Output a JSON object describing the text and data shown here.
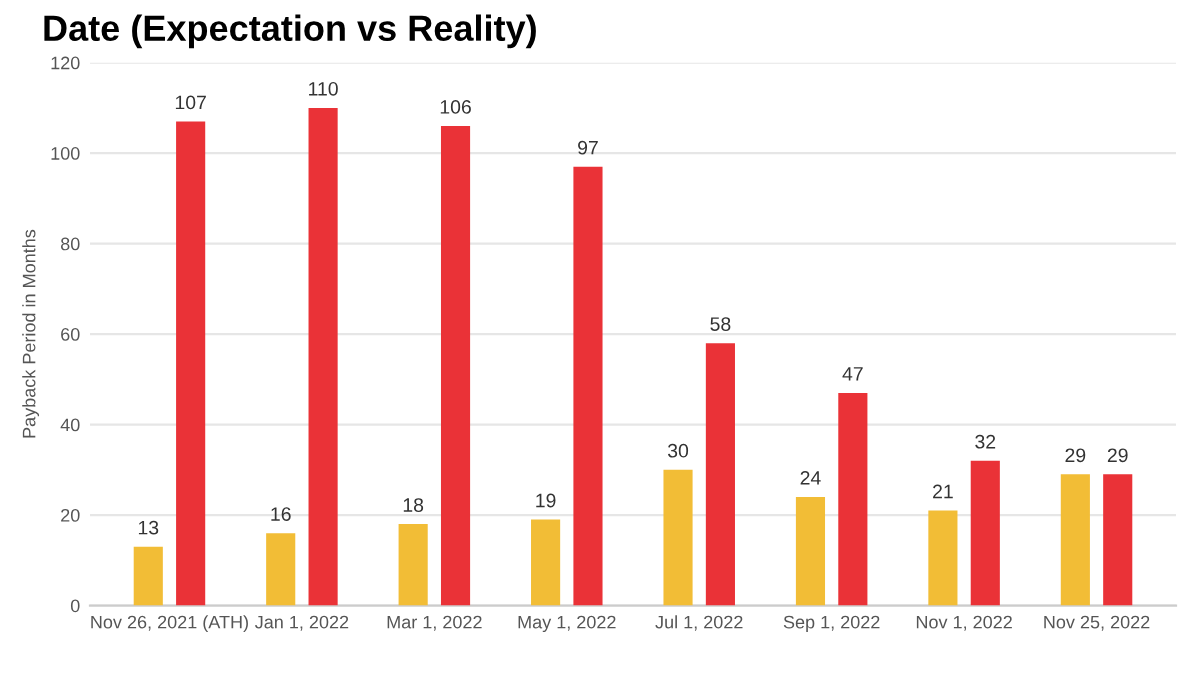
{
  "chart_data": {
    "type": "bar",
    "title": "Date (Expectation vs Reality)",
    "ylabel": "Payback Period in Months",
    "categories": [
      "Nov 26, 2021 (ATH)",
      "Jan 1, 2022",
      "Mar 1, 2022",
      "May 1, 2022",
      "Jul 1, 2022",
      "Sep 1, 2022",
      "Nov 1, 2022",
      "Nov 25, 2022"
    ],
    "series": [
      {
        "color": "#f2bd36",
        "values": [
          13,
          16,
          18,
          19,
          30,
          24,
          21,
          29
        ]
      },
      {
        "color": "#ea3237",
        "values": [
          107,
          110,
          106,
          97,
          58,
          47,
          32,
          29
        ]
      }
    ],
    "ylim": [
      0,
      120
    ],
    "yticks": [
      0,
      20,
      40,
      60,
      80,
      100,
      120
    ],
    "grid": "y",
    "data_labels": true
  }
}
